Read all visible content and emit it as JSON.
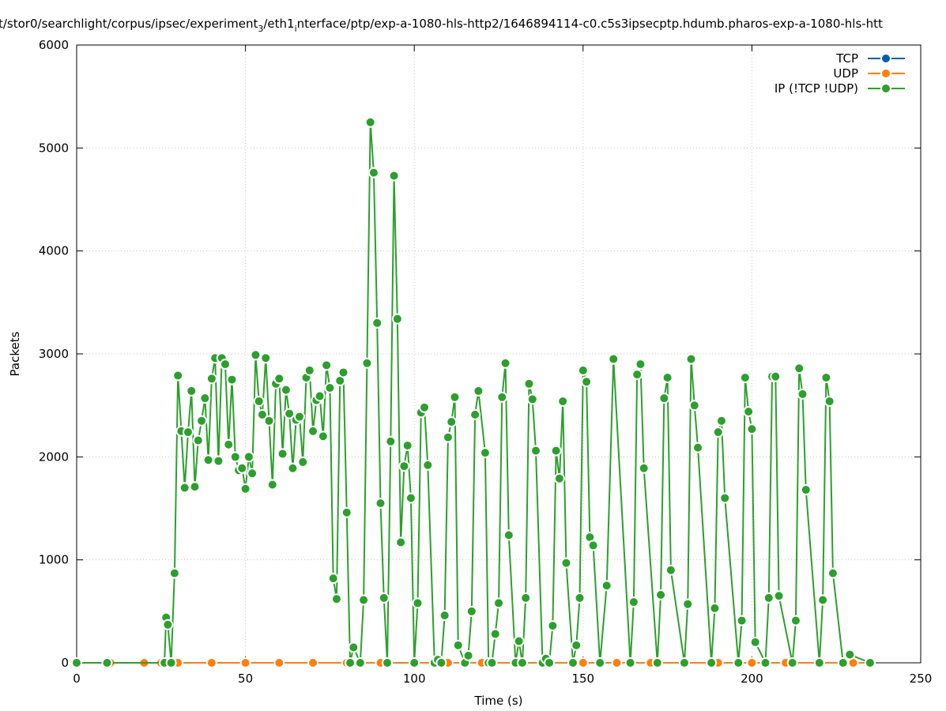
{
  "chart_data": {
    "type": "line",
    "title": "t/stor0/searchlight/corpus/ipsec/experiment",
    "title_sub": "3",
    "title_mid": "/eth1",
    "title_sub2": "i",
    "title_rest": "nterface/ptp/exp-a-1080-hls-http2/1646894114-c0.c5s3ipsecptp.hdumb.pharos-exp-a-1080-hls-htt",
    "xlabel": "Time (s)",
    "ylabel": "Packets",
    "xlim": [
      0,
      250
    ],
    "ylim": [
      0,
      6000
    ],
    "x_ticks": [
      "0",
      "50",
      "100",
      "150",
      "200",
      "250"
    ],
    "y_ticks": [
      "0",
      "1000",
      "2000",
      "3000",
      "4000",
      "5000",
      "6000"
    ],
    "grid": true,
    "legend_position": "top-right",
    "series": [
      {
        "name": "TCP",
        "color": "#0060ad",
        "x": [
          0,
          10,
          20,
          25,
          30,
          40,
          50,
          60,
          70,
          80,
          90,
          100,
          110,
          120,
          130,
          140,
          150,
          160,
          170,
          180,
          190,
          200,
          210,
          220,
          230,
          235
        ],
        "y": [
          0,
          0,
          0,
          0,
          0,
          0,
          0,
          0,
          0,
          0,
          0,
          0,
          0,
          0,
          0,
          0,
          0,
          0,
          0,
          0,
          0,
          0,
          0,
          0,
          0,
          0
        ]
      },
      {
        "name": "UDP",
        "color": "#ff7f0e",
        "x": [
          0,
          10,
          20,
          25,
          30,
          40,
          50,
          60,
          70,
          80,
          90,
          100,
          110,
          120,
          130,
          140,
          150,
          160,
          170,
          180,
          190,
          200,
          210,
          220,
          230,
          235
        ],
        "y": [
          0,
          0,
          0,
          0,
          0,
          0,
          0,
          0,
          0,
          0,
          0,
          0,
          0,
          0,
          0,
          0,
          0,
          0,
          0,
          0,
          0,
          0,
          0,
          0,
          0,
          0
        ]
      },
      {
        "name": "IP (!TCP  !UDP)",
        "color": "#2ca02c",
        "x": [
          0,
          9,
          26,
          26.5,
          27,
          28,
          29,
          30,
          31,
          32,
          33,
          34,
          35,
          36,
          37,
          38,
          39,
          40,
          41,
          42,
          43,
          44,
          45,
          46,
          47,
          48,
          49,
          50,
          51,
          52,
          53,
          54,
          55,
          56,
          57,
          58,
          59,
          60,
          61,
          62,
          63,
          64,
          65,
          66,
          67,
          68,
          69,
          70,
          71,
          72,
          73,
          74,
          75,
          76,
          77,
          78,
          79,
          80,
          81,
          82,
          84,
          85,
          86,
          87,
          88,
          89,
          90,
          91,
          92,
          93,
          94,
          95,
          96,
          97,
          98,
          99,
          100,
          101,
          102,
          103,
          104,
          106,
          107,
          108,
          109,
          110,
          111,
          112,
          113,
          115,
          116,
          117,
          118,
          119,
          121,
          122,
          123,
          124,
          125,
          126,
          127,
          128,
          130,
          131,
          132,
          133,
          134,
          135,
          136,
          138,
          139,
          140,
          141,
          142,
          143,
          144,
          145,
          147,
          148,
          149,
          150,
          151,
          152,
          153,
          155,
          157,
          159,
          164,
          165,
          166,
          167,
          168,
          172,
          173,
          174,
          175,
          176,
          180,
          181,
          182,
          183,
          184,
          188,
          189,
          190,
          191,
          192,
          196,
          197,
          198,
          199,
          200,
          201,
          204,
          205,
          206,
          207,
          208,
          212,
          213,
          214,
          215,
          216,
          220,
          221,
          222,
          223,
          224,
          227,
          229,
          235
        ],
        "y": [
          0,
          0,
          0,
          440,
          370,
          0,
          870,
          2790,
          2250,
          1700,
          2240,
          2640,
          1710,
          2160,
          2350,
          2570,
          1970,
          2760,
          2960,
          1960,
          2960,
          2900,
          2120,
          2750,
          2000,
          1870,
          1890,
          1690,
          2000,
          1840,
          2990,
          2540,
          2410,
          2960,
          2350,
          1730,
          2710,
          2760,
          2030,
          2650,
          2420,
          1890,
          2360,
          2390,
          1950,
          2770,
          2840,
          2250,
          2550,
          2590,
          2200,
          2890,
          2670,
          820,
          620,
          2740,
          2820,
          1460,
          0,
          150,
          0,
          610,
          2910,
          5250,
          4760,
          3300,
          1550,
          630,
          0,
          2150,
          4730,
          3340,
          1170,
          1910,
          2110,
          1600,
          0,
          580,
          2430,
          2480,
          1920,
          0,
          30,
          0,
          460,
          2190,
          2340,
          2580,
          170,
          0,
          70,
          500,
          2410,
          2640,
          2040,
          0,
          0,
          280,
          580,
          2580,
          2910,
          1240,
          0,
          210,
          0,
          630,
          2710,
          2560,
          2060,
          0,
          40,
          0,
          360,
          2060,
          1790,
          2540,
          970,
          0,
          170,
          630,
          2840,
          2730,
          1220,
          1140,
          0,
          750,
          2950,
          0,
          590,
          2800,
          2900,
          1890,
          0,
          660,
          2570,
          2770,
          900,
          0,
          570,
          2950,
          2500,
          2090,
          0,
          530,
          2240,
          2350,
          1600,
          0,
          410,
          2770,
          2440,
          2270,
          200,
          0,
          630,
          2780,
          2780,
          650,
          0,
          410,
          2860,
          2610,
          1680,
          0,
          610,
          2770,
          2540,
          870,
          0,
          80,
          0
        ]
      }
    ]
  }
}
